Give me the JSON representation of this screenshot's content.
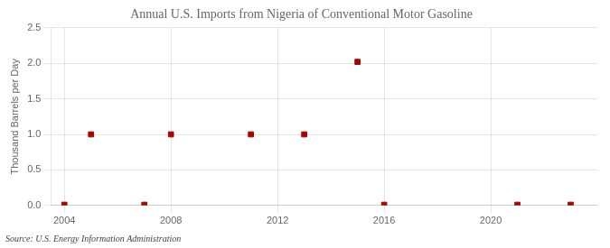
{
  "chart_data": {
    "type": "scatter",
    "title": "Annual U.S. Imports from Nigeria of Conventional Motor Gasoline",
    "ylabel": "Thousand Barrels per Day",
    "annotation": "Source: U.S. Energy Information Administration",
    "x": [
      2004,
      2005,
      2007,
      2008,
      2011,
      2013,
      2015,
      2016,
      2021,
      2023
    ],
    "values": [
      0.01,
      1.0,
      0.01,
      1.0,
      1.0,
      1.0,
      2.02,
      0.01,
      0.01,
      0.01
    ],
    "color": "#aa0000",
    "marker": "square",
    "xlim": [
      2003.5,
      2024
    ],
    "xticks": [
      2004,
      2008,
      2012,
      2016,
      2020
    ],
    "ylim": [
      0,
      2.5
    ],
    "yticks": [
      {
        "value": 0,
        "label": "0.0"
      },
      0.5,
      {
        "value": 1,
        "label": "1.0"
      },
      1.5,
      {
        "value": 2,
        "label": "2.0"
      },
      2.5
    ],
    "grid": true
  }
}
